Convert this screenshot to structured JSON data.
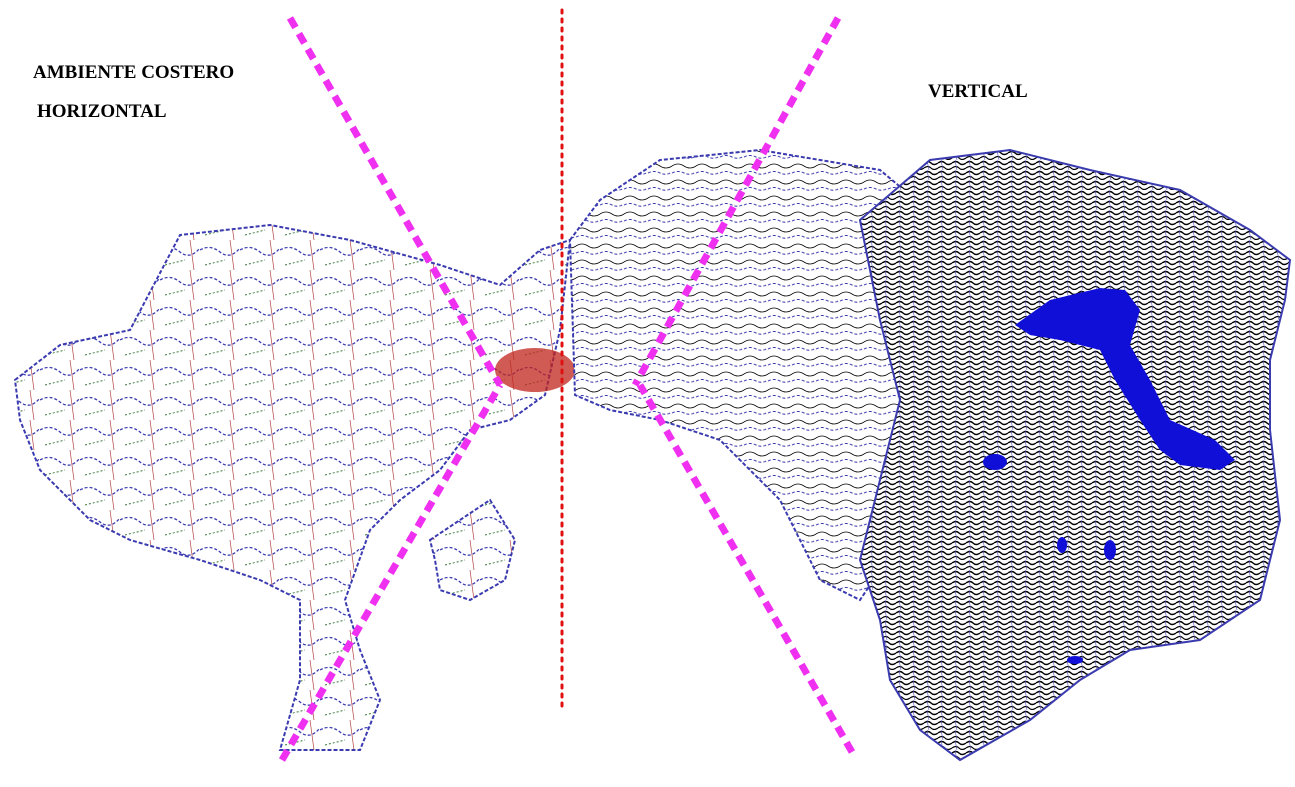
{
  "labels": {
    "coastal": "AMBIENTE COSTERO",
    "horizontal": "HORIZONTAL",
    "vertical": "VERTICAL"
  }
}
